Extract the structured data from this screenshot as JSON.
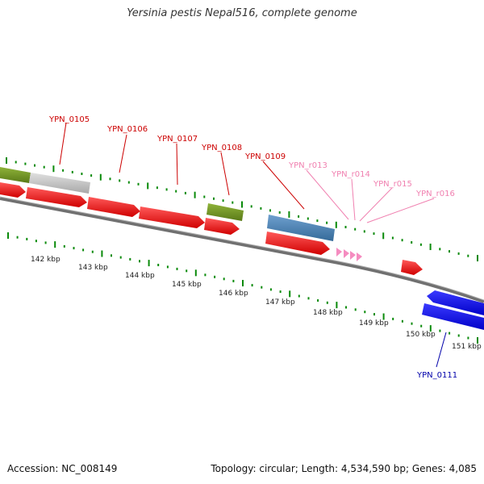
{
  "title": "Yersinia pestis Nepal516, complete genome",
  "footer": {
    "accession": "Accession: NC_008149",
    "summary": "Topology: circular; Length: 4,534,590 bp; Genes: 4,085"
  },
  "colors": {
    "backbone": "#808080",
    "tick": "#0a8a0a",
    "cds_red": "#ff0000",
    "cds_blue": "#0000ff",
    "gene_label_red": "#cc0000",
    "gene_label_blue": "#0000aa",
    "rrna_label_pink": "#f080b0",
    "olive": "#6b8e23",
    "gray_block": "#c0c0c0",
    "steel_blue": "#4682b4"
  },
  "gene_labels": [
    "YPN_0105",
    "YPN_0106",
    "YPN_0107",
    "YPN_0108",
    "YPN_0109",
    "YPN_0111"
  ],
  "rrna_labels": [
    "YPN_r013",
    "YPN_r014",
    "YPN_r015",
    "YPN_r016"
  ],
  "scale_labels": [
    "142 kbp",
    "143 kbp",
    "144 kbp",
    "145 kbp",
    "146 kbp",
    "147 kbp",
    "148 kbp",
    "149 kbp",
    "150 kbp",
    "151 kbp"
  ]
}
